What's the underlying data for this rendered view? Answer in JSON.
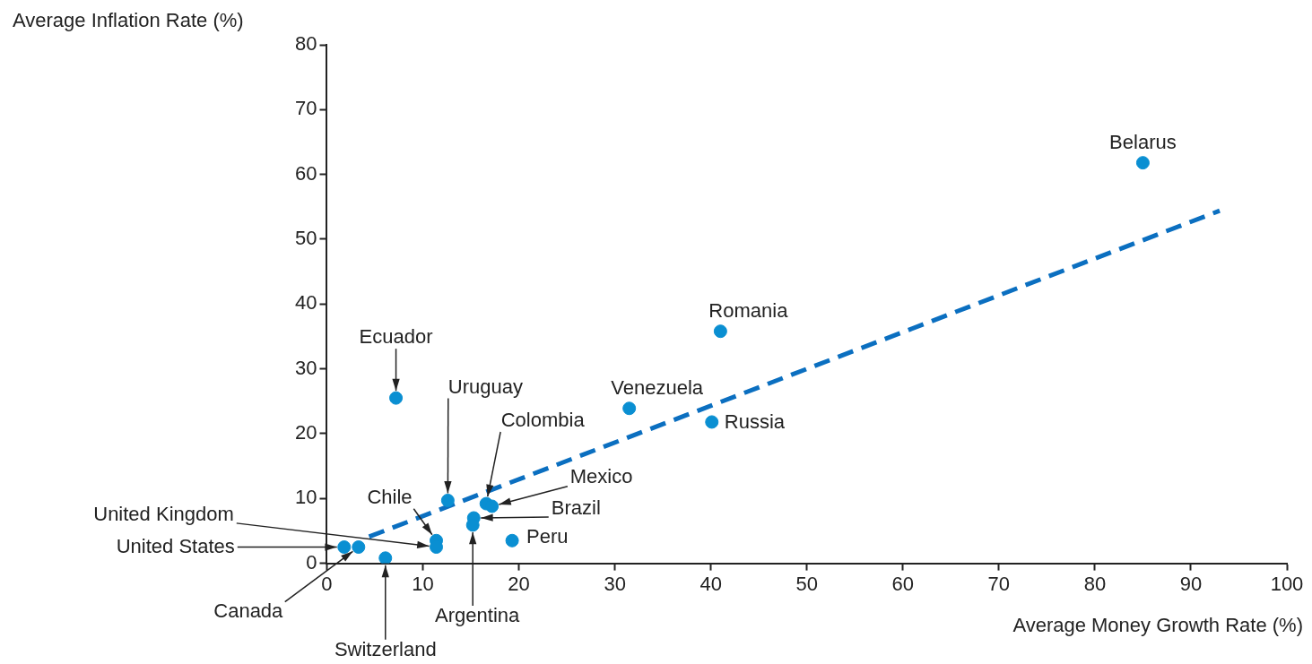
{
  "chart_data": {
    "type": "scatter",
    "xlabel": "Average Money Growth Rate (%)",
    "ylabel": "Average Inflation Rate (%)",
    "xlim": [
      0,
      100
    ],
    "xticks": [
      0,
      10,
      20,
      30,
      40,
      50,
      60,
      70,
      80,
      90,
      100
    ],
    "ylim": [
      0,
      80
    ],
    "yticks": [
      0,
      10,
      20,
      30,
      40,
      50,
      60,
      70,
      80
    ],
    "grid": false,
    "legend": false,
    "marker": "circle",
    "series": [
      {
        "type": "scatter",
        "color": "#0a8fd2",
        "x": [
          85.0,
          41.0,
          40.1,
          31.5,
          7.2,
          12.6,
          16.6,
          17.2,
          15.3,
          15.2,
          19.3,
          11.4,
          11.4,
          1.8,
          3.3,
          6.1
        ],
        "values": [
          61.8,
          35.8,
          21.8,
          23.9,
          25.5,
          9.7,
          9.2,
          8.8,
          7.0,
          5.9,
          3.5,
          3.5,
          2.5,
          2.5,
          2.5,
          0.8
        ]
      },
      {
        "type": "line",
        "color": "#0b6fc0",
        "line_style": "dashed",
        "marker": "none",
        "x": [
          4.4,
          93
        ],
        "values": [
          4.1,
          54.4
        ]
      }
    ],
    "annotations": [
      {
        "text": "Belarus",
        "x": 85.0,
        "y": 61.8
      },
      {
        "text": "Romania",
        "x": 41.0,
        "y": 35.8
      },
      {
        "text": "Russia",
        "x": 40.1,
        "y": 21.8
      },
      {
        "text": "Venezuela",
        "x": 31.5,
        "y": 23.9
      },
      {
        "text": "Ecuador",
        "x": 7.2,
        "y": 25.5
      },
      {
        "text": "Uruguay",
        "x": 12.6,
        "y": 9.7
      },
      {
        "text": "Colombia",
        "x": 16.6,
        "y": 9.2
      },
      {
        "text": "Mexico",
        "x": 17.2,
        "y": 8.8
      },
      {
        "text": "Brazil",
        "x": 15.3,
        "y": 7.0
      },
      {
        "text": "Argentina",
        "x": 15.2,
        "y": 5.9
      },
      {
        "text": "Peru",
        "x": 19.3,
        "y": 3.5
      },
      {
        "text": "Chile",
        "x": 11.4,
        "y": 3.5
      },
      {
        "text": "United Kingdom",
        "x": 11.4,
        "y": 2.5
      },
      {
        "text": "United States",
        "x": 1.8,
        "y": 2.5
      },
      {
        "text": "Canada",
        "x": 3.3,
        "y": 2.5
      },
      {
        "text": "Switzerland",
        "x": 6.1,
        "y": 0.8
      }
    ]
  }
}
